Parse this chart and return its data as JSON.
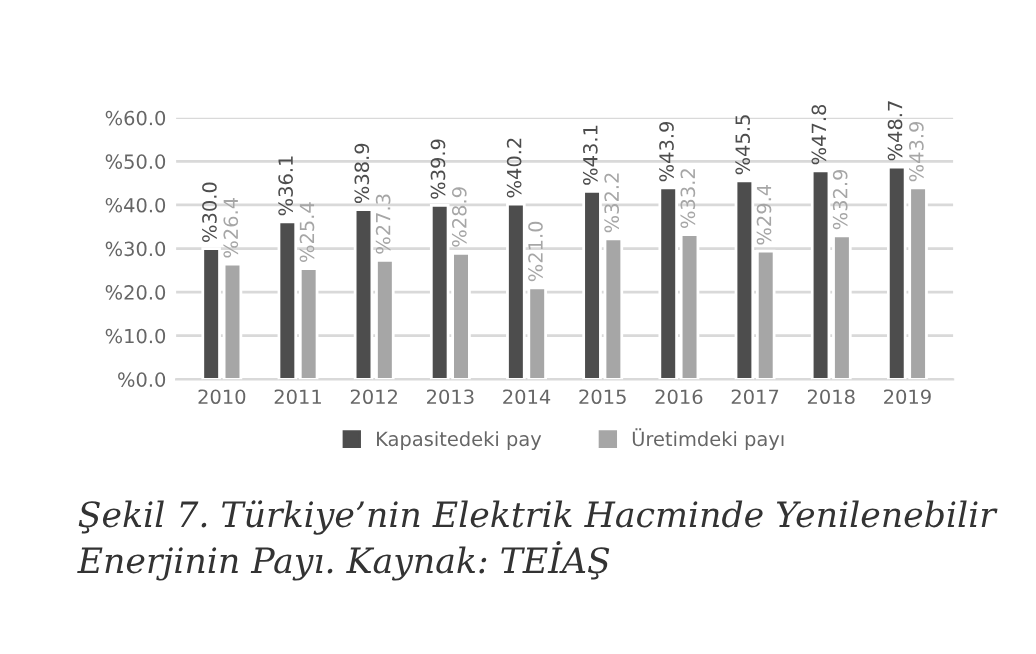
{
  "chart_data": {
    "type": "bar",
    "categories": [
      "2010",
      "2011",
      "2012",
      "2013",
      "2014",
      "2015",
      "2016",
      "2017",
      "2018",
      "2019"
    ],
    "series": [
      {
        "name": "Kapasitedeki pay",
        "color": "#4d4d4d",
        "values": [
          30.0,
          36.1,
          38.9,
          39.9,
          40.2,
          43.1,
          43.9,
          45.5,
          47.8,
          48.7
        ],
        "value_labels": [
          "%30.0",
          "%36.1",
          "%38.9",
          "%39.9",
          "%40.2",
          "%43.1",
          "%43.9",
          "%45.5",
          "%47.8",
          "%48.7"
        ]
      },
      {
        "name": "Üretimdeki payı",
        "color": "#a6a6a6",
        "values": [
          26.4,
          25.4,
          27.3,
          28.9,
          21.0,
          32.2,
          33.2,
          29.4,
          32.9,
          43.9
        ],
        "value_labels": [
          "%26.4",
          "%25.4",
          "%27.3",
          "%28.9",
          "%21.0",
          "%32.2",
          "%33.2",
          "%29.4",
          "%32.9",
          "%43.9"
        ]
      }
    ],
    "ylim": [
      0,
      60
    ],
    "yticks": [
      {
        "value": 0,
        "label": "%0.0"
      },
      {
        "value": 10,
        "label": "%10.0"
      },
      {
        "value": 20,
        "label": "%20.0"
      },
      {
        "value": 30,
        "label": "%30.0"
      },
      {
        "value": 40,
        "label": "%40.0"
      },
      {
        "value": 50,
        "label": "%50.0"
      },
      {
        "value": 60,
        "label": "%60.0"
      }
    ],
    "grid": "y",
    "legend": "bottom",
    "annotations": [
      "Şekil 7. Türkiye’nin Elektrik Hacminde Yenilenebilir Enerjinin Payı. Kaynak: TEİAŞ"
    ]
  }
}
